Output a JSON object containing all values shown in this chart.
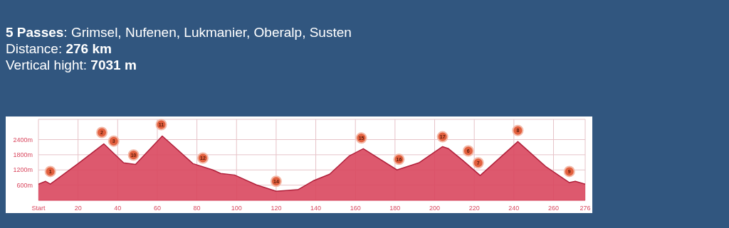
{
  "chart_data": {
    "type": "area",
    "title": "5 Passes: Grimsel, Nufenen, Lukmanier, Oberalp, Susten",
    "subtitle": "Distance: 276 km",
    "annotations": [
      "Vertical hight: 7031 m",
      {
        "text": "1",
        "x": 6,
        "y": 1140
      },
      {
        "text": "2",
        "x": 32,
        "y": 2680
      },
      {
        "text": "3",
        "x": 38,
        "y": 2340
      },
      {
        "text": "10",
        "x": 48,
        "y": 1790
      },
      {
        "text": "11",
        "x": 62,
        "y": 2990
      },
      {
        "text": "12",
        "x": 83,
        "y": 1670
      },
      {
        "text": "14",
        "x": 120,
        "y": 750
      },
      {
        "text": "15",
        "x": 163,
        "y": 2460
      },
      {
        "text": "16",
        "x": 182,
        "y": 1620
      },
      {
        "text": "17",
        "x": 204,
        "y": 2510
      },
      {
        "text": "6",
        "x": 217,
        "y": 1950
      },
      {
        "text": "7",
        "x": 222,
        "y": 1480
      },
      {
        "text": "8",
        "x": 242,
        "y": 2760
      },
      {
        "text": "9",
        "x": 268,
        "y": 1140
      }
    ],
    "x": [
      0,
      3.6,
      6,
      20,
      33,
      43,
      49,
      62.5,
      78,
      88,
      92,
      99,
      110,
      120,
      131,
      139,
      147,
      157,
      164,
      181,
      192,
      204,
      207,
      214,
      223,
      242,
      256,
      268,
      271,
      276
    ],
    "series": [
      {
        "color": "#d9475e",
        "values": [
          640,
          750,
          640,
          1450,
          2230,
          1480,
          1420,
          2540,
          1450,
          1200,
          1060,
          1000,
          610,
          360,
          420,
          780,
          1030,
          1760,
          2040,
          1200,
          1480,
          2120,
          2040,
          1590,
          980,
          2320,
          1340,
          700,
          750,
          640
        ]
      }
    ],
    "xlim": [
      0,
      276
    ],
    "xticks": [
      {
        "value": 0,
        "label": "Start"
      },
      20,
      40,
      60,
      80,
      100,
      120,
      140,
      160,
      180,
      200,
      220,
      240,
      260,
      276
    ],
    "ylim": [
      0,
      3200
    ],
    "yticks": [
      {
        "value": 600,
        "label": "600m"
      },
      {
        "value": 1200,
        "label": "1200m"
      },
      {
        "value": 1800,
        "label": "1800m"
      },
      {
        "value": 2400,
        "label": "2400m"
      }
    ],
    "grid": true
  }
}
